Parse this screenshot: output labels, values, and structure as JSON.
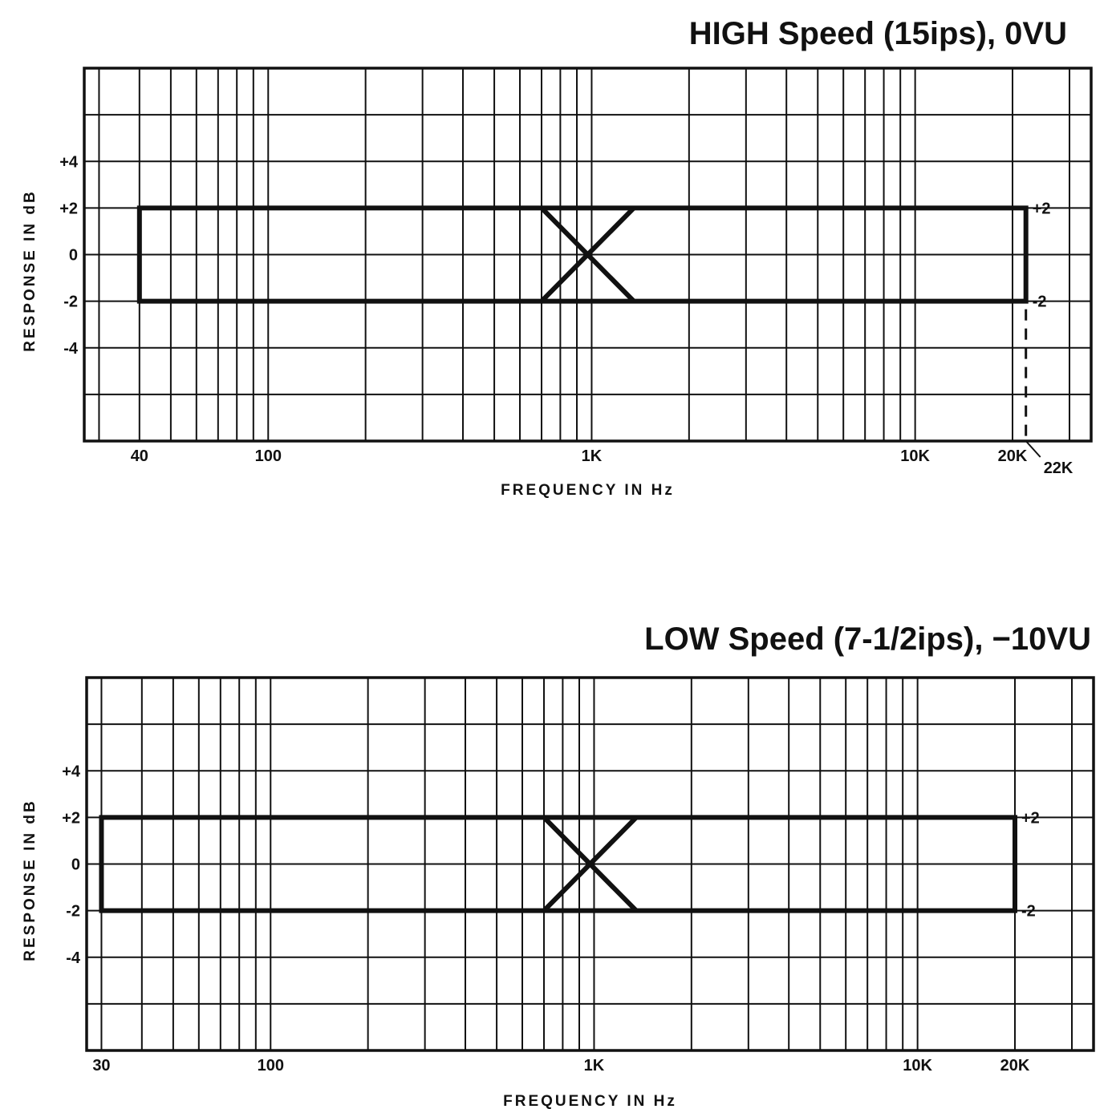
{
  "chart_data": [
    {
      "type": "line",
      "title": "HIGH Speed (15ips), 0VU",
      "xlabel": "FREQUENCY IN Hz",
      "ylabel": "RESPONSE IN dB",
      "x_scale": "log",
      "xlim": [
        27,
        35000
      ],
      "ylim": [
        -8,
        8
      ],
      "grid": true,
      "x_ticks": [
        {
          "value": 40,
          "label": "40"
        },
        {
          "value": 100,
          "label": "100"
        },
        {
          "value": 1000,
          "label": "1K"
        },
        {
          "value": 10000,
          "label": "10K"
        },
        {
          "value": 20000,
          "label": "20K"
        }
      ],
      "y_ticks": [
        {
          "value": 4,
          "label": "+4"
        },
        {
          "value": 2,
          "label": "+2"
        },
        {
          "value": 0,
          "label": "0"
        },
        {
          "value": -2,
          "label": "-2"
        },
        {
          "value": -4,
          "label": "-4"
        }
      ],
      "right_labels": [
        {
          "value": 2,
          "label": "+2"
        },
        {
          "value": -2,
          "label": "-2"
        }
      ],
      "tolerance_band": {
        "f_low": 40,
        "f_high": 22000,
        "upper_db": 2,
        "lower_db": -2,
        "cross_low": 700,
        "cross_center": 1000,
        "cross_high": 1350
      },
      "annotation": {
        "value": 22000,
        "label": "22K"
      }
    },
    {
      "type": "line",
      "title": "LOW Speed (7-1/2ips), −10VU",
      "xlabel": "FREQUENCY IN Hz",
      "ylabel": "RESPONSE IN dB",
      "x_scale": "log",
      "xlim": [
        27,
        35000
      ],
      "ylim": [
        -8,
        8
      ],
      "grid": true,
      "x_ticks": [
        {
          "value": 30,
          "label": "30"
        },
        {
          "value": 100,
          "label": "100"
        },
        {
          "value": 1000,
          "label": "1K"
        },
        {
          "value": 10000,
          "label": "10K"
        },
        {
          "value": 20000,
          "label": "20K"
        }
      ],
      "y_ticks": [
        {
          "value": 4,
          "label": "+4"
        },
        {
          "value": 2,
          "label": "+2"
        },
        {
          "value": 0,
          "label": "0"
        },
        {
          "value": -2,
          "label": "-2"
        },
        {
          "value": -4,
          "label": "-4"
        }
      ],
      "right_labels": [
        {
          "value": 2,
          "label": "+2"
        },
        {
          "value": -2,
          "label": "-2"
        }
      ],
      "tolerance_band": {
        "f_low": 30,
        "f_high": 20000,
        "upper_db": 2,
        "lower_db": -2,
        "cross_low": 700,
        "cross_center": 1000,
        "cross_high": 1350
      }
    }
  ]
}
